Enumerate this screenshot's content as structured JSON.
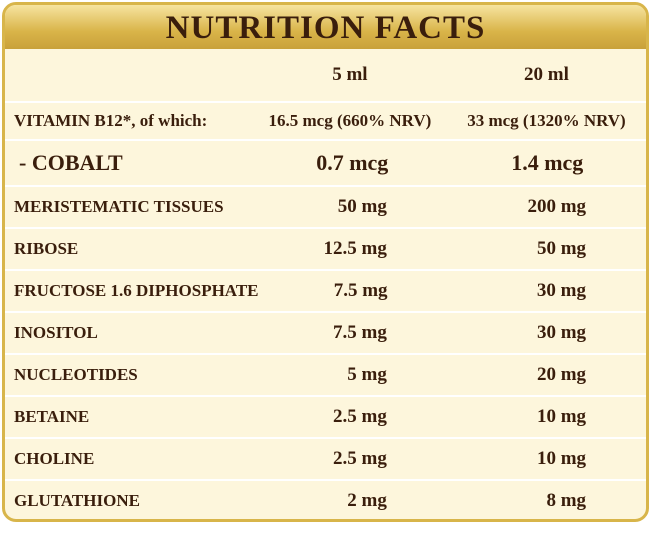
{
  "header": {
    "title": "NUTRITION FACTS"
  },
  "table": {
    "columns": [
      "5 ml",
      "20 ml"
    ],
    "rows": [
      [
        "VITAMIN B12*, of which:",
        "16.5 mcg (660% NRV)",
        "33 mcg (1320% NRV)"
      ],
      [
        "- COBALT",
        "0.7 mcg",
        "1.4 mcg"
      ],
      [
        "MERISTEMATIC TISSUES",
        "50 mg",
        "200 mg"
      ],
      [
        "RIBOSE",
        "12.5 mg",
        "50 mg"
      ],
      [
        "FRUCTOSE 1.6 DIPHOSPHATE",
        "7.5 mg",
        "30 mg"
      ],
      [
        "INOSITOL",
        "7.5 mg",
        "30 mg"
      ],
      [
        "NUCLEOTIDES",
        "5 mg",
        "20 mg"
      ],
      [
        "BETAINE",
        "2.5 mg",
        "10 mg"
      ],
      [
        "CHOLINE",
        "2.5 mg",
        "10 mg"
      ],
      [
        "GLUTATHIONE",
        "2 mg",
        "8 mg"
      ]
    ]
  }
}
